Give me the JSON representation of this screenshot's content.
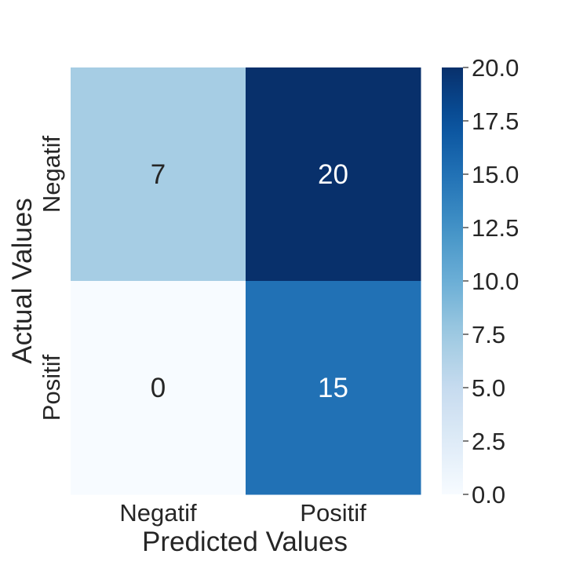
{
  "chart_data": {
    "type": "heatmap",
    "title": "",
    "xlabel": "Predicted Values",
    "ylabel": "Actual Values",
    "x_categories": [
      "Negatif",
      "Positif"
    ],
    "y_categories": [
      "Negatif",
      "Positif"
    ],
    "values": [
      [
        7,
        20
      ],
      [
        0,
        15
      ]
    ],
    "colormap": "Blues",
    "colorbar": {
      "min": 0,
      "max": 20,
      "ticks": [
        "0.0",
        "2.5",
        "5.0",
        "7.5",
        "10.0",
        "12.5",
        "15.0",
        "17.5",
        "20.0"
      ]
    },
    "cell_text_dark": "#262626",
    "cell_text_light": "#ffffff"
  }
}
